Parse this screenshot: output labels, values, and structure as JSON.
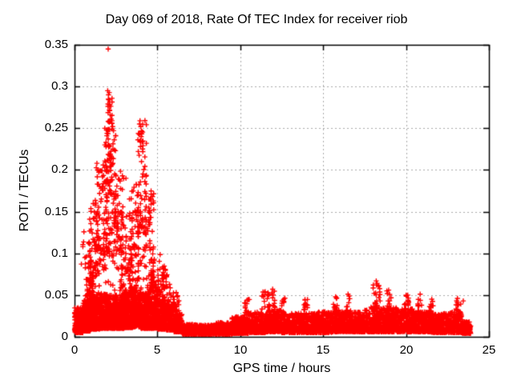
{
  "chart_data": {
    "type": "scatter",
    "title": "Day 069 of 2018, Rate Of TEC Index for receiver riob",
    "xlabel": "GPS time / hours",
    "ylabel": "ROTI / TECUs",
    "xlim": [
      0,
      25
    ],
    "ylim": [
      0,
      0.35
    ],
    "xticks": [
      0,
      5,
      10,
      15,
      20,
      25
    ],
    "xtick_labels": [
      "0",
      "5",
      "10",
      "15",
      "20",
      "25"
    ],
    "yticks": [
      0,
      0.05,
      0.1,
      0.15,
      0.2,
      0.25,
      0.3,
      0.35
    ],
    "ytick_labels": [
      "0",
      "0.05",
      "0.1",
      "0.15",
      "0.2",
      "0.25",
      "0.3",
      "0.35"
    ],
    "grid": true,
    "legend": "none",
    "background": "#ffffff",
    "axis_color": "#000000",
    "grid_color": "#a8a8a8",
    "marker": {
      "shape": "plus",
      "color": "#ff0000",
      "size": 7
    },
    "series_name": "ROTI",
    "data_extent": {
      "x_start": 0.0,
      "x_end": 23.9
    },
    "peak_point": {
      "x": 2.03,
      "y": 0.345
    },
    "seed": 69,
    "density_regions": [
      [
        0.0,
        0.5,
        0.005,
        0.035,
        220,
        2.0
      ],
      [
        0.5,
        1.0,
        0.007,
        0.045,
        220,
        2.0
      ],
      [
        1.0,
        1.5,
        0.009,
        0.05,
        200,
        1.8
      ],
      [
        1.5,
        2.0,
        0.01,
        0.052,
        200,
        1.8
      ],
      [
        2.0,
        2.5,
        0.01,
        0.05,
        200,
        1.8
      ],
      [
        2.5,
        3.0,
        0.01,
        0.05,
        200,
        1.8
      ],
      [
        3.0,
        3.5,
        0.011,
        0.055,
        200,
        1.8
      ],
      [
        3.5,
        4.0,
        0.012,
        0.058,
        200,
        1.8
      ],
      [
        4.0,
        4.5,
        0.01,
        0.052,
        200,
        1.8
      ],
      [
        4.5,
        5.0,
        0.01,
        0.05,
        200,
        1.8
      ],
      [
        5.0,
        5.5,
        0.009,
        0.045,
        160,
        1.8
      ],
      [
        5.5,
        6.0,
        0.008,
        0.04,
        150,
        2.0
      ],
      [
        6.0,
        6.5,
        0.006,
        0.028,
        140,
        2.0
      ],
      [
        6.5,
        7.5,
        0.003,
        0.015,
        260,
        1.5
      ],
      [
        7.5,
        8.5,
        0.003,
        0.014,
        260,
        1.5
      ],
      [
        8.5,
        9.5,
        0.003,
        0.017,
        260,
        1.5
      ],
      [
        9.5,
        10.5,
        0.004,
        0.024,
        240,
        1.8
      ],
      [
        10.5,
        11.5,
        0.005,
        0.03,
        240,
        1.8
      ],
      [
        11.5,
        12.5,
        0.006,
        0.032,
        240,
        1.8
      ],
      [
        12.5,
        13.5,
        0.005,
        0.028,
        240,
        1.8
      ],
      [
        13.5,
        14.5,
        0.005,
        0.028,
        240,
        1.8
      ],
      [
        14.5,
        15.5,
        0.005,
        0.03,
        240,
        1.8
      ],
      [
        15.5,
        16.5,
        0.006,
        0.032,
        240,
        1.8
      ],
      [
        16.5,
        17.5,
        0.006,
        0.03,
        240,
        1.8
      ],
      [
        17.5,
        18.5,
        0.006,
        0.036,
        240,
        1.8
      ],
      [
        18.5,
        19.5,
        0.006,
        0.035,
        240,
        1.8
      ],
      [
        19.5,
        20.5,
        0.006,
        0.034,
        240,
        1.8
      ],
      [
        20.5,
        21.5,
        0.006,
        0.03,
        240,
        1.8
      ],
      [
        21.5,
        22.5,
        0.005,
        0.028,
        240,
        1.8
      ],
      [
        22.5,
        23.4,
        0.005,
        0.03,
        210,
        1.8
      ],
      [
        23.4,
        23.9,
        0.004,
        0.018,
        120,
        1.6
      ],
      [
        0.4,
        1.0,
        0.085,
        0.13,
        10,
        1.0
      ],
      [
        0.6,
        1.2,
        0.04,
        0.1,
        60,
        1.5
      ],
      [
        0.9,
        1.5,
        0.06,
        0.16,
        70,
        1.2
      ],
      [
        1.2,
        2.0,
        0.08,
        0.21,
        90,
        1.2
      ],
      [
        1.8,
        2.5,
        0.09,
        0.25,
        90,
        1.2
      ],
      [
        2.0,
        2.3,
        0.17,
        0.295,
        40,
        1.0
      ],
      [
        2.4,
        3.0,
        0.08,
        0.2,
        70,
        1.2
      ],
      [
        2.8,
        3.5,
        0.05,
        0.145,
        60,
        1.3
      ],
      [
        3.3,
        3.9,
        0.06,
        0.185,
        70,
        1.2
      ],
      [
        3.8,
        4.35,
        0.08,
        0.26,
        80,
        1.2
      ],
      [
        4.3,
        4.8,
        0.05,
        0.175,
        70,
        1.3
      ],
      [
        4.6,
        5.2,
        0.04,
        0.1,
        50,
        1.4
      ],
      [
        5.2,
        5.7,
        0.035,
        0.085,
        40,
        1.4
      ],
      [
        5.7,
        6.3,
        0.03,
        0.055,
        35,
        1.5
      ],
      [
        0.7,
        6.2,
        0.035,
        0.07,
        120,
        1.4
      ],
      [
        10.2,
        10.6,
        0.025,
        0.045,
        14,
        1.2
      ],
      [
        11.3,
        11.8,
        0.03,
        0.055,
        18,
        1.2
      ],
      [
        11.9,
        12.1,
        0.03,
        0.057,
        12,
        1.2
      ],
      [
        12.5,
        12.7,
        0.028,
        0.05,
        10,
        1.2
      ],
      [
        13.8,
        14.1,
        0.028,
        0.045,
        12,
        1.2
      ],
      [
        15.6,
        15.9,
        0.03,
        0.048,
        12,
        1.2
      ],
      [
        16.4,
        16.7,
        0.03,
        0.051,
        10,
        1.2
      ],
      [
        18.0,
        18.45,
        0.035,
        0.067,
        20,
        1.2
      ],
      [
        18.8,
        19.1,
        0.03,
        0.058,
        14,
        1.2
      ],
      [
        19.9,
        20.2,
        0.03,
        0.05,
        12,
        1.2
      ],
      [
        20.7,
        20.95,
        0.03,
        0.051,
        10,
        1.2
      ],
      [
        21.4,
        21.7,
        0.028,
        0.045,
        10,
        1.2
      ],
      [
        23.0,
        23.3,
        0.026,
        0.046,
        12,
        1.2
      ]
    ],
    "notable_points": [
      [
        2.03,
        0.345
      ],
      [
        2.0,
        0.295
      ],
      [
        2.05,
        0.29
      ],
      [
        2.08,
        0.284
      ],
      [
        2.02,
        0.279
      ],
      [
        2.1,
        0.272
      ],
      [
        2.15,
        0.266
      ],
      [
        2.2,
        0.261
      ],
      [
        2.25,
        0.256
      ],
      [
        2.3,
        0.252
      ],
      [
        2.35,
        0.247
      ],
      [
        1.95,
        0.241
      ],
      [
        1.9,
        0.233
      ],
      [
        3.95,
        0.259
      ],
      [
        4.0,
        0.252
      ],
      [
        4.05,
        0.246
      ],
      [
        4.02,
        0.24
      ],
      [
        4.08,
        0.234
      ],
      [
        3.98,
        0.228
      ],
      [
        4.12,
        0.222
      ],
      [
        1.35,
        0.208
      ],
      [
        1.4,
        0.2
      ],
      [
        3.1,
        0.19
      ],
      [
        18.2,
        0.067
      ],
      [
        18.22,
        0.062
      ],
      [
        11.95,
        0.057
      ],
      [
        18.95,
        0.056
      ],
      [
        11.5,
        0.054
      ],
      [
        16.5,
        0.051
      ],
      [
        20.0,
        0.05
      ],
      [
        20.1,
        0.05
      ],
      [
        20.85,
        0.051
      ],
      [
        15.75,
        0.048
      ],
      [
        23.1,
        0.046
      ],
      [
        21.55,
        0.045
      ],
      [
        13.9,
        0.044
      ],
      [
        10.4,
        0.044
      ],
      [
        23.45,
        0.043
      ]
    ]
  }
}
